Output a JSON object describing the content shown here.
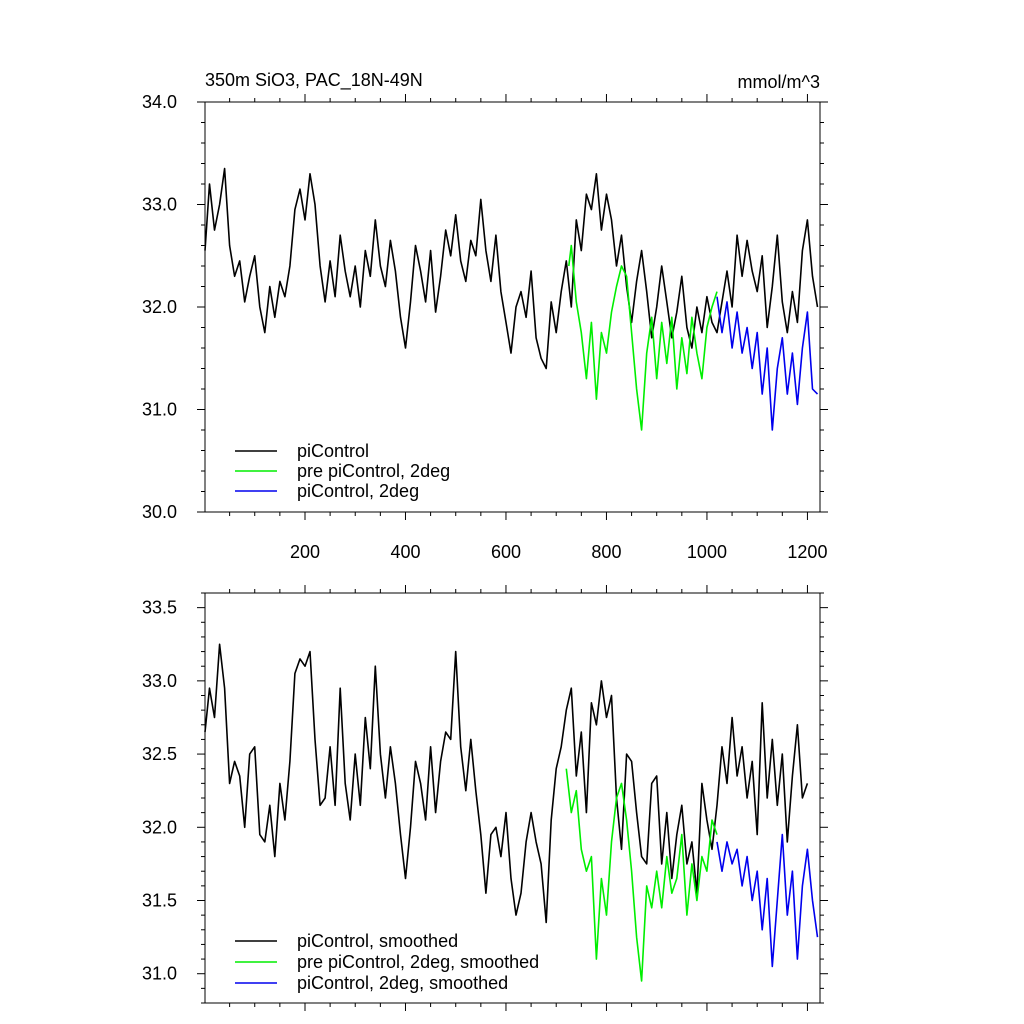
{
  "chart_data": [
    {
      "type": "line",
      "title": "350m SiO3, PAC_18N-49N",
      "units": "mmol/m^3",
      "xlim": [
        1,
        1225
      ],
      "ylim": [
        30.0,
        34.0
      ],
      "x_ticks": [
        200,
        400,
        600,
        800,
        1000,
        1200
      ],
      "x_tick_labels": [
        "200",
        "400",
        "600",
        "800",
        "1000",
        "1200"
      ],
      "y_ticks": [
        30.0,
        31.0,
        32.0,
        33.0,
        34.0
      ],
      "y_tick_labels": [
        "30.0",
        "31.0",
        "32.0",
        "33.0",
        "34.0"
      ],
      "legend_position": "bottom-left",
      "series": [
        {
          "name": "piControl",
          "color": "#000000",
          "x": [
            1,
            10,
            20,
            30,
            40,
            50,
            60,
            70,
            80,
            90,
            100,
            110,
            120,
            130,
            140,
            150,
            160,
            170,
            180,
            190,
            200,
            210,
            220,
            230,
            240,
            250,
            260,
            270,
            280,
            290,
            300,
            310,
            320,
            330,
            340,
            350,
            360,
            370,
            380,
            390,
            400,
            410,
            420,
            430,
            440,
            450,
            460,
            470,
            480,
            490,
            500,
            510,
            520,
            530,
            540,
            550,
            560,
            570,
            580,
            590,
            600,
            610,
            620,
            630,
            640,
            650,
            660,
            670,
            680,
            690,
            700,
            710,
            720,
            730,
            740,
            750,
            760,
            770,
            780,
            790,
            800,
            810,
            820,
            830,
            840,
            850,
            860,
            870,
            880,
            890,
            900,
            910,
            920,
            930,
            940,
            950,
            960,
            970,
            980,
            990,
            1000,
            1010,
            1020,
            1030,
            1040,
            1050,
            1060,
            1070,
            1080,
            1090,
            1100,
            1110,
            1120,
            1130,
            1140,
            1150,
            1160,
            1170,
            1180,
            1190,
            1200,
            1210,
            1220
          ],
          "values": [
            32.55,
            33.2,
            32.75,
            33.0,
            33.35,
            32.6,
            32.3,
            32.45,
            32.05,
            32.3,
            32.5,
            32.0,
            31.75,
            32.2,
            31.9,
            32.25,
            32.1,
            32.4,
            32.95,
            33.15,
            32.85,
            33.3,
            33.0,
            32.4,
            32.05,
            32.45,
            32.1,
            32.7,
            32.35,
            32.1,
            32.4,
            32.0,
            32.55,
            32.3,
            32.85,
            32.4,
            32.2,
            32.65,
            32.35,
            31.9,
            31.6,
            32.05,
            32.6,
            32.35,
            32.05,
            32.55,
            31.95,
            32.3,
            32.75,
            32.5,
            32.9,
            32.45,
            32.25,
            32.65,
            32.5,
            33.05,
            32.55,
            32.25,
            32.7,
            32.15,
            31.85,
            31.55,
            32.0,
            32.15,
            31.9,
            32.35,
            31.7,
            31.5,
            31.4,
            32.05,
            31.75,
            32.15,
            32.45,
            32.0,
            32.85,
            32.55,
            33.1,
            32.95,
            33.3,
            32.75,
            33.1,
            32.85,
            32.4,
            32.7,
            32.2,
            31.85,
            32.25,
            32.55,
            32.15,
            31.7,
            32.0,
            32.4,
            32.05,
            31.7,
            31.95,
            32.3,
            31.8,
            31.6,
            32.0,
            31.75,
            32.1,
            31.85,
            31.75,
            32.05,
            32.35,
            32.0,
            32.7,
            32.3,
            32.65,
            32.35,
            32.15,
            32.5,
            31.8,
            32.2,
            32.7,
            32.05,
            31.75,
            32.15,
            31.85,
            32.55,
            32.85,
            32.3,
            32.0
          ]
        },
        {
          "name": "pre piControl, 2deg",
          "color": "#00ee00",
          "x": [
            725,
            730,
            740,
            750,
            760,
            770,
            780,
            790,
            800,
            810,
            820,
            830,
            840,
            850,
            860,
            870,
            880,
            890,
            900,
            910,
            920,
            930,
            940,
            950,
            960,
            970,
            980,
            990,
            1000,
            1010,
            1020
          ],
          "values": [
            32.4,
            32.6,
            32.05,
            31.75,
            31.3,
            31.85,
            31.1,
            31.75,
            31.55,
            31.95,
            32.2,
            32.4,
            32.3,
            31.75,
            31.2,
            30.8,
            31.55,
            31.9,
            31.3,
            31.85,
            31.45,
            31.9,
            31.2,
            31.7,
            31.35,
            31.9,
            31.55,
            31.3,
            31.8,
            32.0,
            32.15
          ]
        },
        {
          "name": "piControl, 2deg",
          "color": "#0000ee",
          "x": [
            1020,
            1030,
            1040,
            1050,
            1060,
            1070,
            1080,
            1090,
            1100,
            1110,
            1120,
            1130,
            1140,
            1150,
            1160,
            1170,
            1180,
            1190,
            1200,
            1210,
            1220
          ],
          "values": [
            32.1,
            31.75,
            32.05,
            31.6,
            31.95,
            31.55,
            31.8,
            31.4,
            31.75,
            31.15,
            31.6,
            30.8,
            31.4,
            31.7,
            31.15,
            31.55,
            31.05,
            31.6,
            31.95,
            31.2,
            31.15
          ]
        }
      ]
    },
    {
      "type": "line",
      "xlim": [
        1,
        1225
      ],
      "ylim": [
        30.8,
        33.6
      ],
      "x_ticks": [
        200,
        400,
        600,
        800,
        1000,
        1200
      ],
      "y_ticks": [
        31.0,
        31.5,
        32.0,
        32.5,
        33.0,
        33.5
      ],
      "y_tick_labels": [
        "31.0",
        "31.5",
        "32.0",
        "32.5",
        "33.0",
        "33.5"
      ],
      "legend_position": "bottom-left",
      "series": [
        {
          "name": "piControl, smoothed",
          "color": "#000000",
          "x": [
            1,
            10,
            20,
            30,
            40,
            50,
            60,
            70,
            80,
            90,
            100,
            110,
            120,
            130,
            140,
            150,
            160,
            170,
            180,
            190,
            200,
            210,
            220,
            230,
            240,
            250,
            260,
            270,
            280,
            290,
            300,
            310,
            320,
            330,
            340,
            350,
            360,
            370,
            380,
            390,
            400,
            410,
            420,
            430,
            440,
            450,
            460,
            470,
            480,
            490,
            500,
            510,
            520,
            530,
            540,
            550,
            560,
            570,
            580,
            590,
            600,
            610,
            620,
            630,
            640,
            650,
            660,
            670,
            680,
            690,
            700,
            710,
            720,
            730,
            740,
            750,
            760,
            770,
            780,
            790,
            800,
            810,
            820,
            830,
            840,
            850,
            860,
            870,
            880,
            890,
            900,
            910,
            920,
            930,
            940,
            950,
            960,
            970,
            980,
            990,
            1000,
            1010,
            1020,
            1030,
            1040,
            1050,
            1060,
            1070,
            1080,
            1090,
            1100,
            1110,
            1120,
            1130,
            1140,
            1150,
            1160,
            1170,
            1180,
            1190,
            1200
          ],
          "values": [
            32.65,
            32.95,
            32.75,
            33.25,
            32.95,
            32.3,
            32.45,
            32.35,
            32.0,
            32.5,
            32.55,
            31.95,
            31.9,
            32.15,
            31.8,
            32.3,
            32.05,
            32.45,
            33.05,
            33.15,
            33.1,
            33.2,
            32.6,
            32.15,
            32.2,
            32.55,
            32.15,
            32.95,
            32.3,
            32.05,
            32.5,
            32.15,
            32.75,
            32.4,
            33.1,
            32.5,
            32.2,
            32.55,
            32.3,
            31.95,
            31.65,
            32.0,
            32.45,
            32.3,
            32.05,
            32.55,
            32.1,
            32.45,
            32.65,
            32.6,
            33.2,
            32.55,
            32.25,
            32.6,
            32.25,
            31.95,
            31.55,
            31.95,
            32.0,
            31.8,
            32.1,
            31.65,
            31.4,
            31.55,
            31.9,
            32.1,
            31.9,
            31.75,
            31.35,
            32.05,
            32.4,
            32.55,
            32.8,
            32.95,
            32.35,
            32.65,
            32.1,
            32.85,
            32.7,
            33.0,
            32.75,
            32.9,
            32.2,
            31.85,
            32.5,
            32.45,
            32.1,
            31.8,
            31.75,
            32.3,
            32.35,
            31.75,
            32.1,
            31.65,
            31.95,
            32.15,
            31.75,
            31.9,
            31.55,
            32.3,
            32.05,
            31.85,
            32.15,
            32.55,
            32.3,
            32.75,
            32.35,
            32.55,
            32.2,
            32.45,
            31.95,
            32.85,
            32.2,
            32.6,
            32.15,
            32.5,
            31.9,
            32.35,
            32.7,
            32.2,
            32.3
          ]
        },
        {
          "name": "pre piControl, 2deg, smoothed",
          "color": "#00ee00",
          "x": [
            720,
            730,
            740,
            750,
            760,
            770,
            780,
            790,
            800,
            810,
            820,
            830,
            840,
            850,
            860,
            870,
            880,
            890,
            900,
            910,
            920,
            930,
            940,
            950,
            960,
            970,
            980,
            990,
            1000,
            1010,
            1020
          ],
          "values": [
            32.4,
            32.1,
            32.25,
            31.85,
            31.7,
            31.8,
            31.1,
            31.65,
            31.4,
            31.9,
            32.2,
            32.3,
            32.05,
            31.7,
            31.25,
            30.95,
            31.6,
            31.45,
            31.7,
            31.45,
            31.8,
            31.55,
            31.65,
            31.95,
            31.4,
            31.75,
            31.5,
            31.8,
            31.7,
            32.05,
            31.95
          ]
        },
        {
          "name": "piControl, 2deg, smoothed",
          "color": "#0000ee",
          "x": [
            1020,
            1030,
            1040,
            1050,
            1060,
            1070,
            1080,
            1090,
            1100,
            1110,
            1120,
            1130,
            1140,
            1150,
            1160,
            1170,
            1180,
            1190,
            1200,
            1210,
            1220
          ],
          "values": [
            31.9,
            31.7,
            31.9,
            31.75,
            31.85,
            31.6,
            31.8,
            31.5,
            31.7,
            31.3,
            31.65,
            31.05,
            31.5,
            31.95,
            31.4,
            31.7,
            31.1,
            31.6,
            31.85,
            31.5,
            31.25
          ]
        }
      ]
    }
  ]
}
